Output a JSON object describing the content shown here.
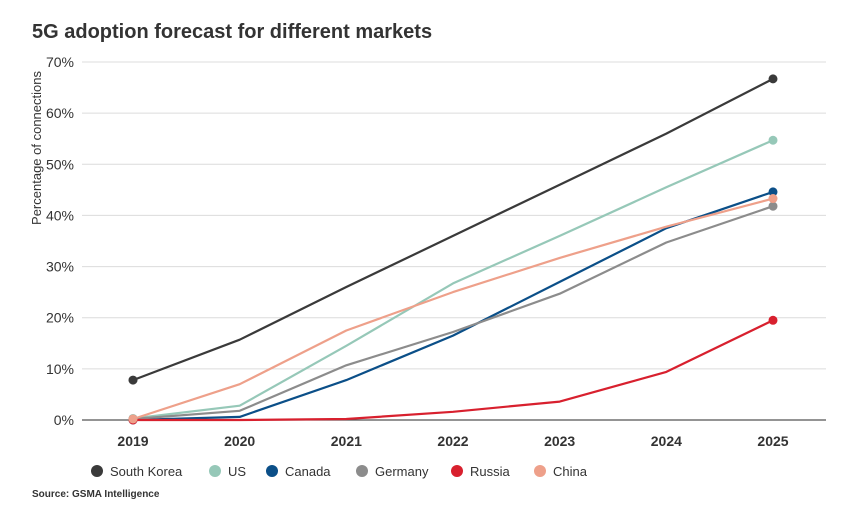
{
  "chart_data": {
    "type": "line",
    "title": "5G adoption forecast for different markets",
    "ylabel": "Percentage of connections",
    "xlabel": "",
    "x": [
      "2019",
      "2020",
      "2021",
      "2022",
      "2023",
      "2024",
      "2025"
    ],
    "ylim": [
      0,
      70
    ],
    "yticks": [
      0,
      10,
      20,
      30,
      40,
      50,
      60,
      70
    ],
    "ytick_labels": [
      "0%",
      "10%",
      "20%",
      "30%",
      "40%",
      "50%",
      "60%",
      "70%"
    ],
    "grid": "horizontal",
    "legend_position": "bottom",
    "series": [
      {
        "name": "South Korea",
        "color": "#3a3a3a",
        "values": [
          7.8,
          15.7,
          26,
          36,
          46,
          56,
          66.7
        ]
      },
      {
        "name": "US",
        "color": "#96c8b8",
        "values": [
          0.3,
          2.8,
          14.5,
          26.7,
          36,
          45.5,
          54.7
        ]
      },
      {
        "name": "Canada",
        "color": "#0b4f88",
        "values": [
          0,
          0.6,
          7.8,
          16.5,
          27,
          37.5,
          44.6
        ]
      },
      {
        "name": "Germany",
        "color": "#8c8c8c",
        "values": [
          0.2,
          1.8,
          10.7,
          17.2,
          24.7,
          34.7,
          41.8
        ]
      },
      {
        "name": "Russia",
        "color": "#d8202e",
        "values": [
          0,
          0,
          0.2,
          1.6,
          3.6,
          9.4,
          19.5
        ]
      },
      {
        "name": "China",
        "color": "#eea08a",
        "values": [
          0.2,
          7,
          17.5,
          25,
          31.7,
          37.8,
          43.3
        ]
      }
    ],
    "source": "Source: GSMA Intelligence"
  }
}
